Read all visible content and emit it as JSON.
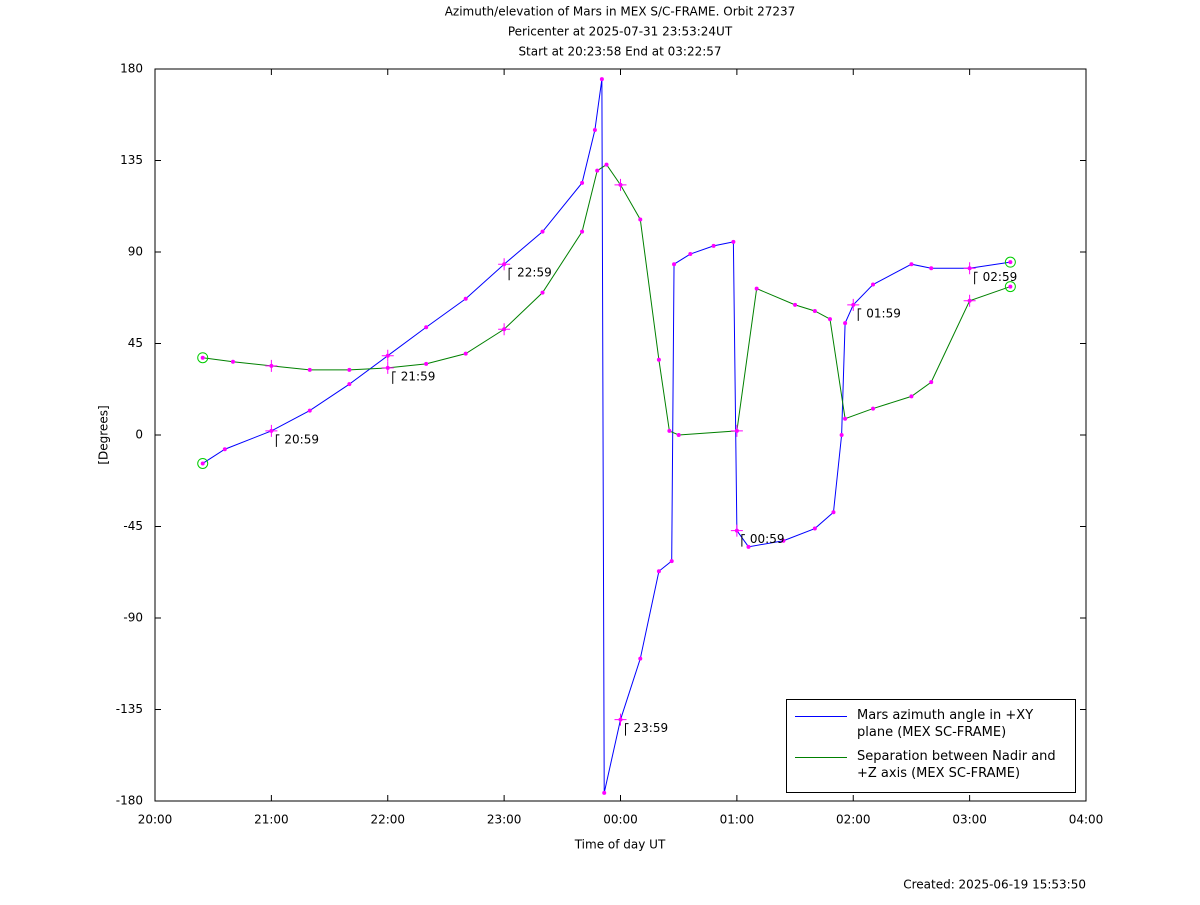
{
  "chart_data": {
    "type": "line",
    "title": "Azimuth/elevation of Mars in MEX S/C-FRAME.  Orbit 27237",
    "subtitle": [
      "Pericenter at 2025-07-31 23:53:24UT",
      "Start at 20:23:58 End at 03:22:57"
    ],
    "x_label": "Time of day UT",
    "y_label": "[Degrees]",
    "footer": "Created: 2025-06-19 15:53:50",
    "xlim": [
      20,
      28
    ],
    "xticks": [
      {
        "value": 20,
        "label": "20:00"
      },
      {
        "value": 21,
        "label": "21:00"
      },
      {
        "value": 22,
        "label": "22:00"
      },
      {
        "value": 23,
        "label": "23:00"
      },
      {
        "value": 24,
        "label": "00:00"
      },
      {
        "value": 25,
        "label": "01:00"
      },
      {
        "value": 26,
        "label": "02:00"
      },
      {
        "value": 27,
        "label": "03:00"
      },
      {
        "value": 28,
        "label": "04:00"
      }
    ],
    "ylim": [
      -180,
      180
    ],
    "yticks": [
      180,
      135,
      90,
      45,
      0,
      -45,
      -90,
      -135,
      -180
    ],
    "legend": "lower right",
    "marker_color": "#ff00ff",
    "endpoint_color": "#00cc00",
    "series": [
      {
        "name": "Mars azimuth angle in +XY plane (MEX SC-FRAME)",
        "color": "#0000ff",
        "x": [
          20.41,
          20.6,
          21.0,
          21.33,
          21.67,
          22.0,
          22.33,
          22.67,
          23.0,
          23.33,
          23.67,
          23.78,
          23.84,
          23.86,
          24.0,
          24.17,
          24.33,
          24.44,
          24.46,
          24.6,
          24.8,
          24.97,
          25.0,
          25.1,
          25.4,
          25.67,
          25.83,
          25.9,
          25.93,
          26.0,
          26.17,
          26.5,
          26.67,
          27.0,
          27.35
        ],
        "values": [
          -14,
          -7,
          2,
          12,
          25,
          39,
          53,
          67,
          84,
          100,
          124,
          150,
          175,
          -176,
          -140,
          -110,
          -67,
          -62,
          84,
          89,
          93,
          95,
          -47,
          -55,
          -52,
          -46,
          -38,
          0,
          55,
          64,
          74,
          84,
          82,
          82,
          85
        ]
      },
      {
        "name": "Separation between Nadir and +Z axis (MEX SC-FRAME)",
        "color": "#008000",
        "x": [
          20.41,
          20.67,
          21.0,
          21.33,
          21.67,
          22.0,
          22.33,
          22.67,
          23.0,
          23.33,
          23.67,
          23.8,
          23.88,
          24.0,
          24.17,
          24.33,
          24.42,
          24.5,
          25.0,
          25.17,
          25.5,
          25.67,
          25.8,
          25.93,
          26.17,
          26.5,
          26.67,
          27.0,
          27.35
        ],
        "values": [
          38,
          36,
          34,
          32,
          32,
          33,
          35,
          40,
          52,
          70,
          100,
          130,
          133,
          123,
          106,
          37,
          2,
          0,
          2,
          72,
          64,
          61,
          57,
          8,
          13,
          19,
          26,
          66,
          73
        ]
      }
    ],
    "annotations": [
      {
        "text": "20:59",
        "x": 21.0,
        "y": 2
      },
      {
        "text": "21:59",
        "x": 22.0,
        "y": 33
      },
      {
        "text": "22:59",
        "x": 23.0,
        "y": 84
      },
      {
        "text": "23:59",
        "x": 24.0,
        "y": -140
      },
      {
        "text": "00:59",
        "x": 25.0,
        "y": -47
      },
      {
        "text": "01:59",
        "x": 26.0,
        "y": 64
      },
      {
        "text": "02:59",
        "x": 27.0,
        "y": 82
      }
    ]
  }
}
